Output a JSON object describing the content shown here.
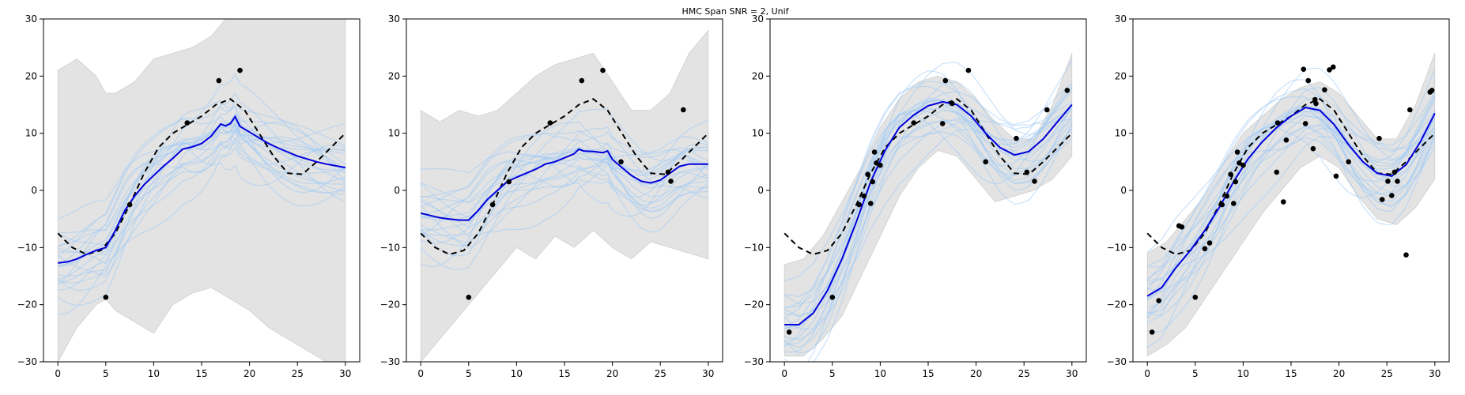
{
  "figure": {
    "suptitle": "HMC Span SNR = 2, Unif"
  },
  "chart_data": [
    {
      "type": "line",
      "panel": 1,
      "xlim": [
        -1.5,
        31.5
      ],
      "ylim": [
        -30,
        30
      ],
      "xticks": [
        0,
        5,
        10,
        15,
        20,
        25,
        30
      ],
      "yticks": [
        -30,
        -20,
        -10,
        0,
        10,
        20,
        30
      ],
      "grid": false,
      "band": {
        "x": [
          0,
          2,
          4,
          5,
          6,
          8,
          10,
          12,
          14,
          16,
          18,
          20,
          22,
          24,
          26,
          28,
          30
        ],
        "upper": [
          21,
          23,
          20,
          17,
          17,
          19,
          23,
          24,
          25,
          27,
          31,
          31,
          31,
          31,
          31,
          31,
          31
        ],
        "lower": [
          -30,
          -24,
          -20,
          -19,
          -21,
          -23,
          -25,
          -20,
          -18,
          -17,
          -19,
          -21,
          -24,
          -26,
          -28,
          -30,
          -30
        ]
      },
      "true_function": {
        "x": [
          0,
          1.5,
          3,
          4.5,
          6,
          7.5,
          9,
          10.5,
          12,
          13.5,
          15,
          16.5,
          18,
          19.5,
          21,
          22.5,
          24,
          25.5,
          27,
          28.5,
          30
        ],
        "y": [
          -7.5,
          -10,
          -11.2,
          -10.5,
          -7.5,
          -2.5,
          3,
          7.5,
          10,
          11.5,
          13,
          15,
          16,
          14,
          10,
          6,
          3,
          2.8,
          5,
          7.5,
          10
        ]
      },
      "posterior_mean": {
        "x": [
          0,
          1,
          2,
          3,
          4,
          5,
          6,
          7,
          8,
          9,
          10,
          11,
          12,
          13,
          14,
          15,
          16,
          17,
          17.5,
          18,
          18.5,
          19,
          20,
          21,
          22,
          23,
          24,
          25,
          26,
          27,
          28,
          29,
          30
        ],
        "y": [
          -12.7,
          -12.5,
          -12,
          -11.2,
          -10.5,
          -10,
          -7,
          -3.5,
          -1,
          1,
          2.6,
          4.2,
          5.6,
          7.2,
          7.6,
          8.2,
          9.5,
          11.6,
          11.3,
          11.7,
          12.9,
          11.2,
          10.2,
          9.2,
          8.2,
          7.4,
          6.7,
          6,
          5.5,
          5,
          4.6,
          4.3,
          4
        ]
      },
      "observations": {
        "x": [
          5,
          7.5,
          13.5,
          16.8,
          19
        ],
        "y": [
          -18.7,
          -2.5,
          11.8,
          19.2,
          21
        ]
      }
    },
    {
      "type": "line",
      "panel": 2,
      "xlim": [
        -1.5,
        31.5
      ],
      "ylim": [
        -30,
        30
      ],
      "xticks": [
        0,
        5,
        10,
        15,
        20,
        25,
        30
      ],
      "yticks": [
        -30,
        -20,
        -10,
        0,
        10,
        20,
        30
      ],
      "grid": false,
      "band": {
        "x": [
          0,
          2,
          4,
          6,
          8,
          10,
          12,
          14,
          16,
          18,
          20,
          22,
          24,
          26,
          28,
          30
        ],
        "upper": [
          14,
          12,
          14,
          13,
          14,
          17,
          20,
          22,
          23,
          24,
          19,
          14,
          14,
          17,
          24,
          28
        ],
        "lower": [
          -30,
          -26,
          -22,
          -18,
          -14,
          -10,
          -12,
          -8,
          -10,
          -7,
          -10,
          -12,
          -9,
          -10,
          -11,
          -12
        ]
      },
      "true_function": {
        "x": [
          0,
          1.5,
          3,
          4.5,
          6,
          7.5,
          9,
          10.5,
          12,
          13.5,
          15,
          16.5,
          18,
          19.5,
          21,
          22.5,
          24,
          25.5,
          27,
          28.5,
          30
        ],
        "y": [
          -7.5,
          -10,
          -11.2,
          -10.5,
          -7.5,
          -2.5,
          3,
          7.5,
          10,
          11.5,
          13,
          15,
          16,
          14,
          10,
          6,
          3,
          2.8,
          5,
          7.5,
          10
        ]
      },
      "posterior_mean": {
        "x": [
          0,
          1,
          2,
          3,
          4,
          5,
          6,
          7,
          8,
          9,
          10,
          11,
          12,
          13,
          14,
          15,
          16,
          16.5,
          17,
          18,
          19,
          19.5,
          20,
          21,
          22,
          23,
          24,
          25,
          26,
          27,
          28,
          29,
          30
        ],
        "y": [
          -4,
          -4.4,
          -4.8,
          -5,
          -5.2,
          -5.2,
          -3.5,
          -1.5,
          0,
          1.5,
          2.3,
          3,
          3.7,
          4.6,
          5,
          5.7,
          6.4,
          7.2,
          6.9,
          6.8,
          6.6,
          6.9,
          5.4,
          4,
          2.6,
          1.6,
          1.3,
          1.8,
          3,
          4.2,
          4.6,
          4.6,
          4.6
        ]
      },
      "observations": {
        "x": [
          5,
          7.5,
          9.2,
          13.5,
          16.8,
          19,
          20.9,
          25.8,
          26.1,
          27.4
        ],
        "y": [
          -18.7,
          -2.5,
          1.5,
          11.8,
          19.2,
          21,
          5,
          3.2,
          1.6,
          14.1
        ]
      }
    },
    {
      "type": "line",
      "panel": 3,
      "xlim": [
        -1.5,
        31.5
      ],
      "ylim": [
        -30,
        30
      ],
      "xticks": [
        0,
        5,
        10,
        15,
        20,
        25,
        30
      ],
      "yticks": [
        -30,
        -20,
        -10,
        0,
        10,
        20,
        30
      ],
      "grid": false,
      "band": {
        "x": [
          0,
          2,
          4,
          6,
          8,
          10,
          12,
          14,
          16,
          18,
          20,
          22,
          24,
          26,
          28,
          30
        ],
        "upper": [
          -13,
          -12,
          -8,
          -2,
          4,
          11,
          16,
          19,
          20,
          19,
          16,
          12,
          9,
          9,
          15,
          24
        ],
        "lower": [
          -29,
          -29,
          -26,
          -22,
          -15,
          -8,
          -1,
          4,
          7,
          6,
          2,
          -2,
          -1,
          0,
          2,
          6
        ]
      },
      "true_function": {
        "x": [
          0,
          1.5,
          3,
          4.5,
          6,
          7.5,
          9,
          10.5,
          12,
          13.5,
          15,
          16.5,
          18,
          19.5,
          21,
          22.5,
          24,
          25.5,
          27,
          28.5,
          30
        ],
        "y": [
          -7.5,
          -10,
          -11.2,
          -10.5,
          -7.5,
          -2.5,
          3,
          7.5,
          10,
          11.5,
          13,
          15,
          16,
          14,
          10,
          6,
          3,
          2.8,
          5,
          7.5,
          10
        ]
      },
      "posterior_mean": {
        "x": [
          0,
          1.5,
          3,
          4.5,
          6,
          7.5,
          9,
          10.5,
          12,
          13.5,
          15,
          16.5,
          18,
          19.5,
          21,
          22.5,
          24,
          25.5,
          27,
          28.5,
          30
        ],
        "y": [
          -23.5,
          -23.5,
          -21.5,
          -17.5,
          -12,
          -5.5,
          1.5,
          7,
          11,
          13.2,
          14.8,
          15.5,
          15,
          13,
          10,
          7.5,
          6.2,
          6.8,
          9,
          12,
          15
        ]
      },
      "observations": {
        "x": [
          0.5,
          5,
          7.8,
          8.3,
          8.7,
          9.0,
          9.2,
          9.4,
          9.6,
          10,
          13.5,
          16.5,
          16.8,
          17.5,
          19.2,
          21,
          24.2,
          25.3,
          26.1,
          27.4,
          29.5
        ],
        "y": [
          -24.8,
          -18.7,
          -2.5,
          -1,
          2.8,
          -2.3,
          1.5,
          6.7,
          4.8,
          4.4,
          11.8,
          11.7,
          19.2,
          15.2,
          21,
          5,
          9.1,
          3.2,
          1.6,
          14.1,
          17.5
        ]
      }
    },
    {
      "type": "line",
      "panel": 4,
      "xlim": [
        -1.5,
        31.5
      ],
      "ylim": [
        -30,
        30
      ],
      "xticks": [
        0,
        5,
        10,
        15,
        20,
        25,
        30
      ],
      "yticks": [
        -30,
        -20,
        -10,
        0,
        10,
        20,
        30
      ],
      "grid": false,
      "band": {
        "x": [
          0,
          2,
          4,
          6,
          8,
          10,
          12,
          14,
          16,
          18,
          20,
          22,
          24,
          26,
          28,
          30
        ],
        "upper": [
          -11,
          -9,
          -5,
          -1,
          5,
          10,
          13,
          16,
          18,
          19,
          17,
          13,
          9,
          9,
          15,
          24
        ],
        "lower": [
          -29,
          -27,
          -24,
          -19,
          -14,
          -9,
          -4,
          0,
          4,
          6,
          4,
          -1,
          -5,
          -6,
          -3,
          2
        ]
      },
      "true_function": {
        "x": [
          0,
          1.5,
          3,
          4.5,
          6,
          7.5,
          9,
          10.5,
          12,
          13.5,
          15,
          16.5,
          18,
          19.5,
          21,
          22.5,
          24,
          25.5,
          27,
          28.5,
          30
        ],
        "y": [
          -7.5,
          -10,
          -11.2,
          -10.5,
          -7.5,
          -2.5,
          3,
          7.5,
          10,
          11.5,
          13,
          15,
          16,
          14,
          10,
          6,
          3,
          2.8,
          5,
          7.5,
          10
        ]
      },
      "posterior_mean": {
        "x": [
          0,
          1.5,
          3,
          4.5,
          6,
          7.5,
          9,
          10.5,
          12,
          13.5,
          15,
          16.5,
          18,
          19.5,
          21,
          22.5,
          24,
          25.5,
          27,
          28.5,
          30
        ],
        "y": [
          -18.5,
          -17,
          -13.5,
          -10.5,
          -7,
          -3,
          1.5,
          5.5,
          8.5,
          11,
          13,
          14.5,
          14,
          11.5,
          8,
          5,
          3,
          2.5,
          4.5,
          8.5,
          13.5
        ]
      },
      "observations": {
        "x": [
          0.5,
          1.2,
          3.3,
          3.6,
          5,
          6.0,
          6.5,
          7.8,
          8.3,
          8.7,
          9.0,
          9.2,
          9.4,
          9.6,
          10,
          13.5,
          13.6,
          14.2,
          14.5,
          16.3,
          16.5,
          16.8,
          17.3,
          17.5,
          17.6,
          18.5,
          19.0,
          19.4,
          19.7,
          21,
          24.2,
          24.5,
          25.1,
          25.5,
          25.8,
          26.1,
          27.0,
          27.4,
          29.5,
          29.7
        ],
        "y": [
          -24.8,
          -19.3,
          -6.2,
          -6.4,
          -18.7,
          -10.2,
          -9.2,
          -2.5,
          -1,
          2.8,
          -2.3,
          1.5,
          6.7,
          4.8,
          4.4,
          3.2,
          11.8,
          -2,
          8.8,
          21.2,
          11.7,
          19.2,
          7.3,
          15.9,
          15.2,
          17.6,
          21.1,
          21.6,
          2.5,
          5,
          9.1,
          -1.6,
          1.6,
          -0.9,
          3.2,
          1.6,
          -11.3,
          14.1,
          17.2,
          17.5
        ]
      }
    }
  ]
}
